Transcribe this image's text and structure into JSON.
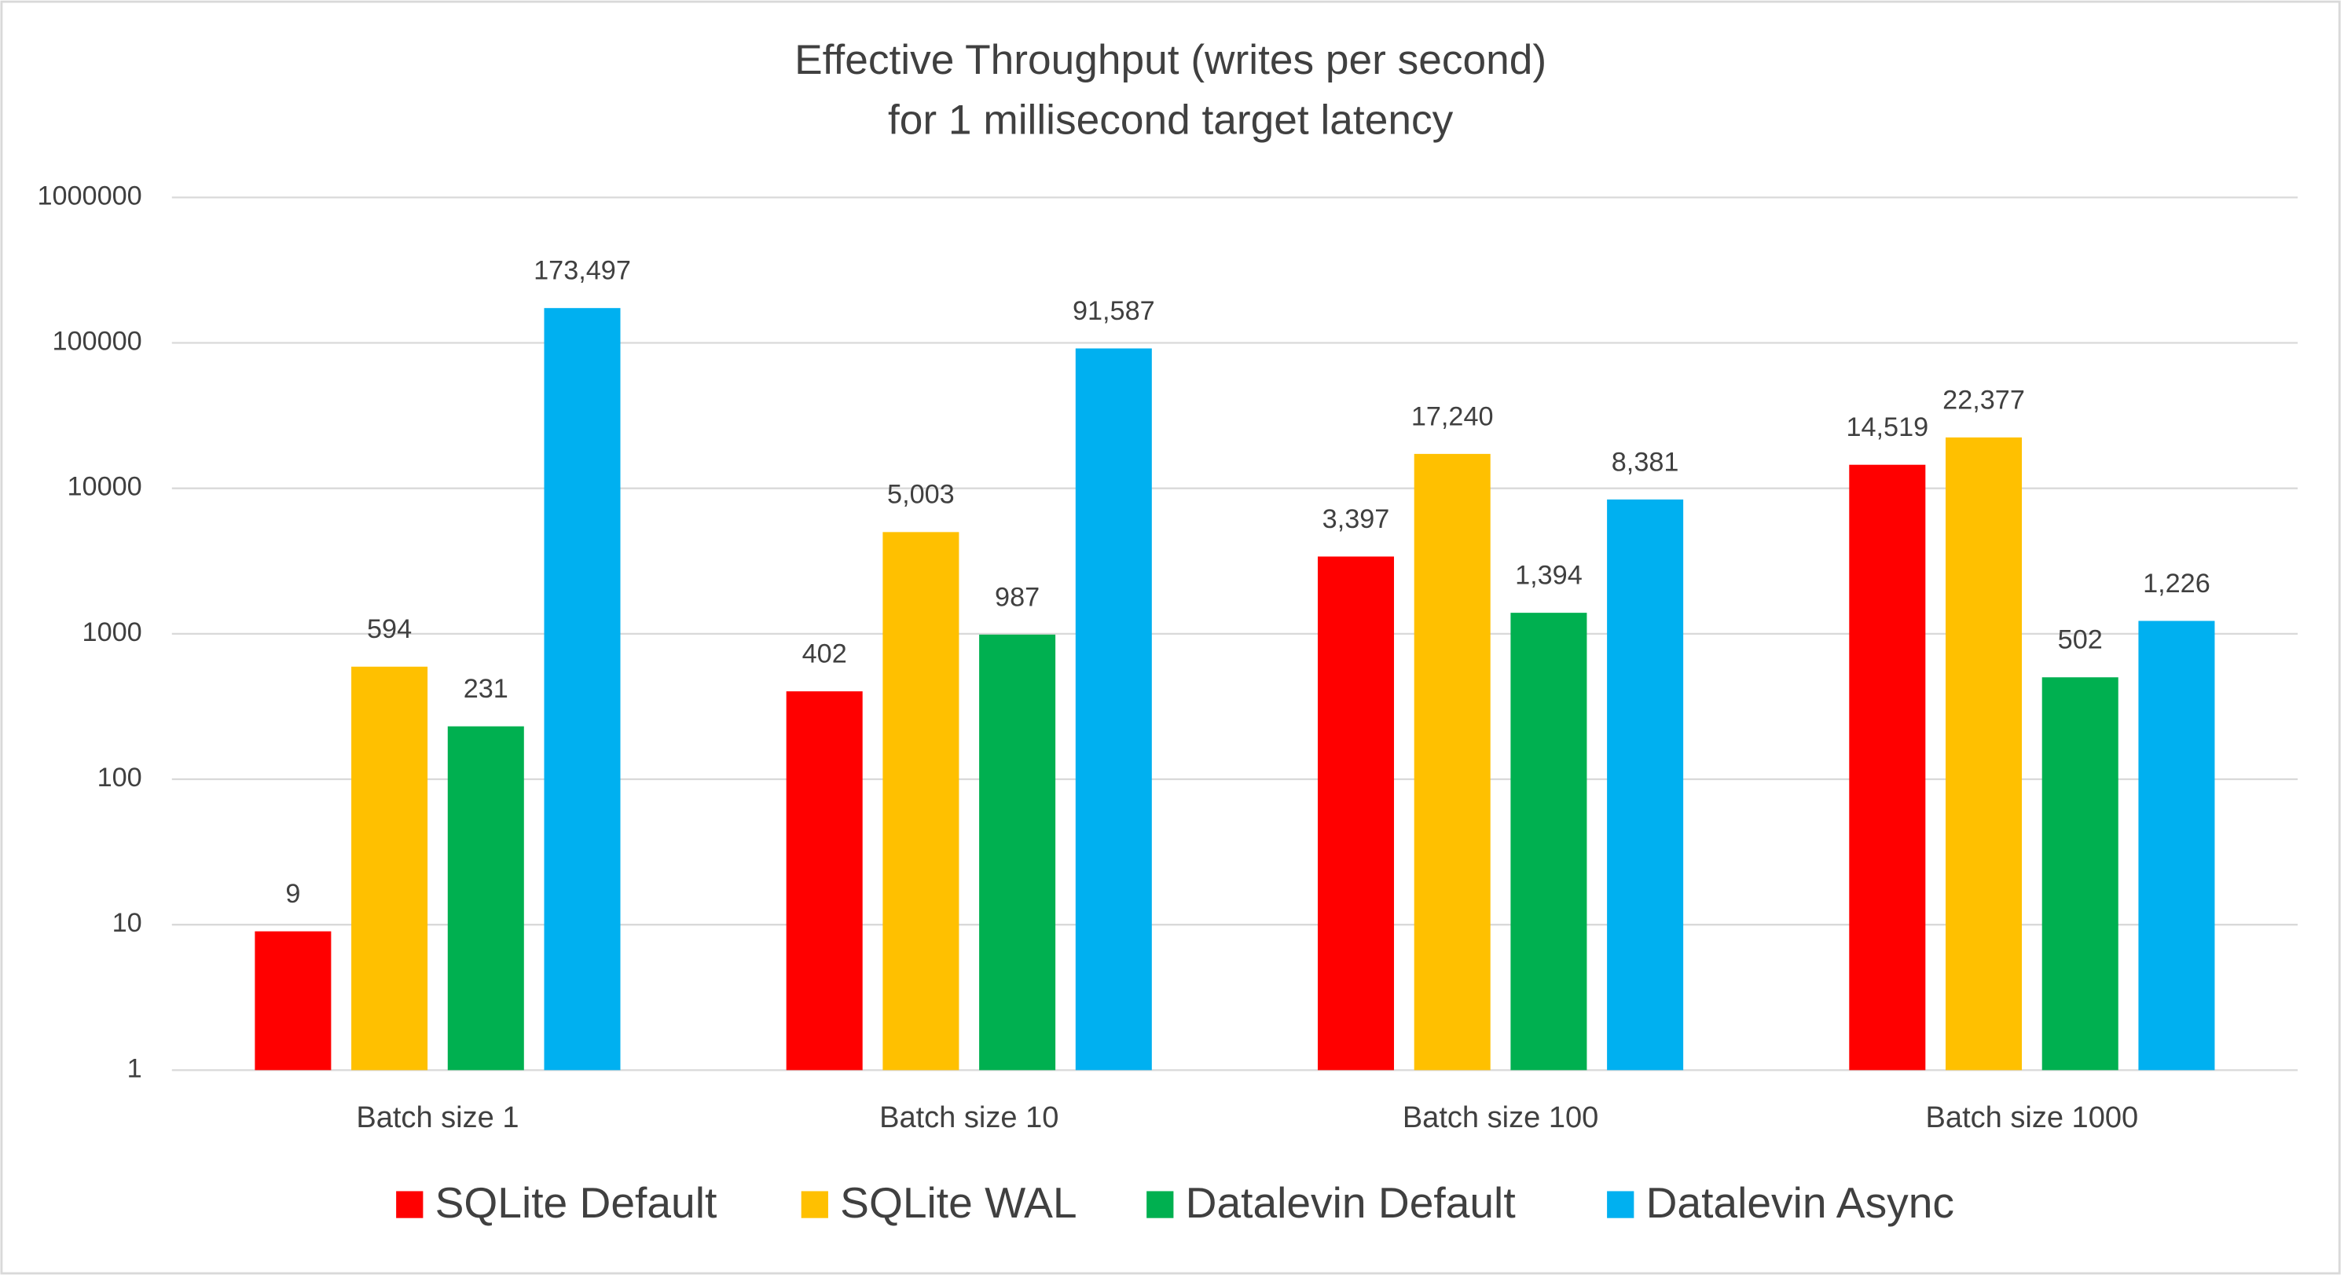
{
  "chart_data": {
    "type": "bar",
    "title": "Effective Throughput (writes per second)",
    "subtitle": "for 1 millisecond target latency",
    "categories": [
      "Batch size 1",
      "Batch size 10",
      "Batch size 100",
      "Batch size 1000"
    ],
    "series": [
      {
        "name": "SQLite Default",
        "color": "#ff0000",
        "values": [
          9,
          402,
          3397,
          14519
        ],
        "value_labels": [
          "9",
          "402",
          "3,397",
          "14,519"
        ]
      },
      {
        "name": "SQLite WAL",
        "color": "#ffc000",
        "values": [
          594,
          5003,
          17240,
          22377
        ],
        "value_labels": [
          "594",
          "5,003",
          "17,240",
          "22,377"
        ]
      },
      {
        "name": "Datalevin Default",
        "color": "#00b050",
        "values": [
          231,
          987,
          1394,
          502
        ],
        "value_labels": [
          "231",
          "987",
          "1,394",
          "502"
        ]
      },
      {
        "name": "Datalevin Async",
        "color": "#00b0f0",
        "values": [
          173497,
          91587,
          8381,
          1226
        ],
        "value_labels": [
          "173,497",
          "91,587",
          "8,381",
          "1,226"
        ]
      }
    ],
    "log_scale": true,
    "ylim": [
      1,
      1000000
    ],
    "yticks": [
      1,
      10,
      100,
      1000,
      10000,
      100000,
      1000000
    ],
    "grid": true,
    "legend": "bottom"
  }
}
